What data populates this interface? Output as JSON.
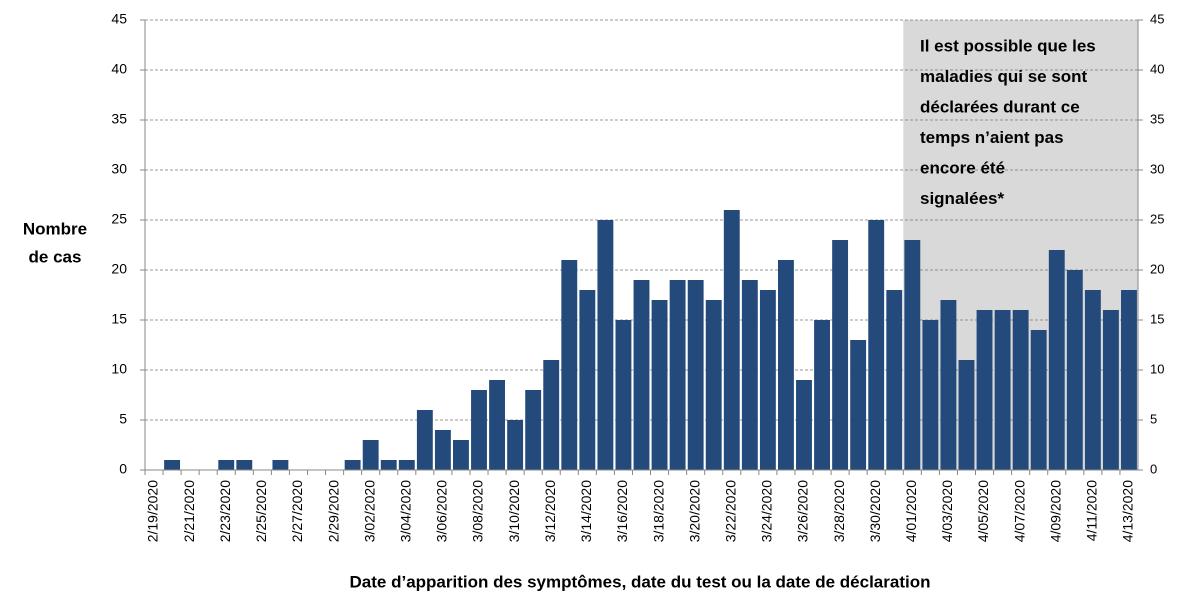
{
  "chart_data": {
    "type": "bar",
    "y_label": [
      "Nombre",
      "de cas"
    ],
    "x_label": "Date d’apparition des symptômes, date du test ou la date de déclaration",
    "annotation": [
      "Il est possible que les",
      "maladies qui se sont",
      "déclarées durant ce",
      "temps n’aient pas",
      "encore été",
      "signalées*"
    ],
    "highlight_start": "4/01/2020",
    "highlight_color": "#d9d9d9",
    "categories": [
      "2/19/2020",
      null,
      "2/21/2020",
      null,
      "2/23/2020",
      null,
      "2/25/2020",
      null,
      "2/27/2020",
      null,
      "2/29/2020",
      null,
      "3/02/2020",
      null,
      "3/04/2020",
      null,
      "3/06/2020",
      null,
      "3/08/2020",
      null,
      "3/10/2020",
      null,
      "3/12/2020",
      null,
      "3/14/2020",
      null,
      "3/16/2020",
      null,
      "3/18/2020",
      null,
      "3/20/2020",
      null,
      "3/22/2020",
      null,
      "3/24/2020",
      null,
      "3/26/2020",
      null,
      "3/28/2020",
      null,
      "3/30/2020",
      null,
      "4/01/2020",
      null,
      "4/03/2020",
      null,
      "4/05/2020",
      null,
      "4/07/2020",
      null,
      "4/09/2020",
      null,
      "4/11/2020",
      null,
      "4/13/2020"
    ],
    "values": [
      0,
      1,
      0,
      0,
      1,
      1,
      0,
      1,
      0,
      0,
      0,
      1,
      3,
      1,
      1,
      6,
      4,
      3,
      8,
      9,
      5,
      8,
      11,
      21,
      18,
      25,
      15,
      19,
      17,
      19,
      19,
      17,
      26,
      19,
      18,
      21,
      9,
      15,
      23,
      13,
      25,
      18,
      23,
      15,
      17,
      11,
      16,
      16,
      16,
      14,
      22,
      20,
      18,
      16,
      18
    ],
    "color": "#244a7c",
    "ylim": [
      0,
      45
    ],
    "yticks": [
      0,
      5,
      10,
      15,
      20,
      25,
      30,
      35,
      40,
      45
    ],
    "y2lim": [
      0,
      45
    ],
    "y2ticks": [
      0,
      5,
      10,
      15,
      20,
      25,
      30,
      35,
      40,
      45
    ],
    "grid": true
  }
}
